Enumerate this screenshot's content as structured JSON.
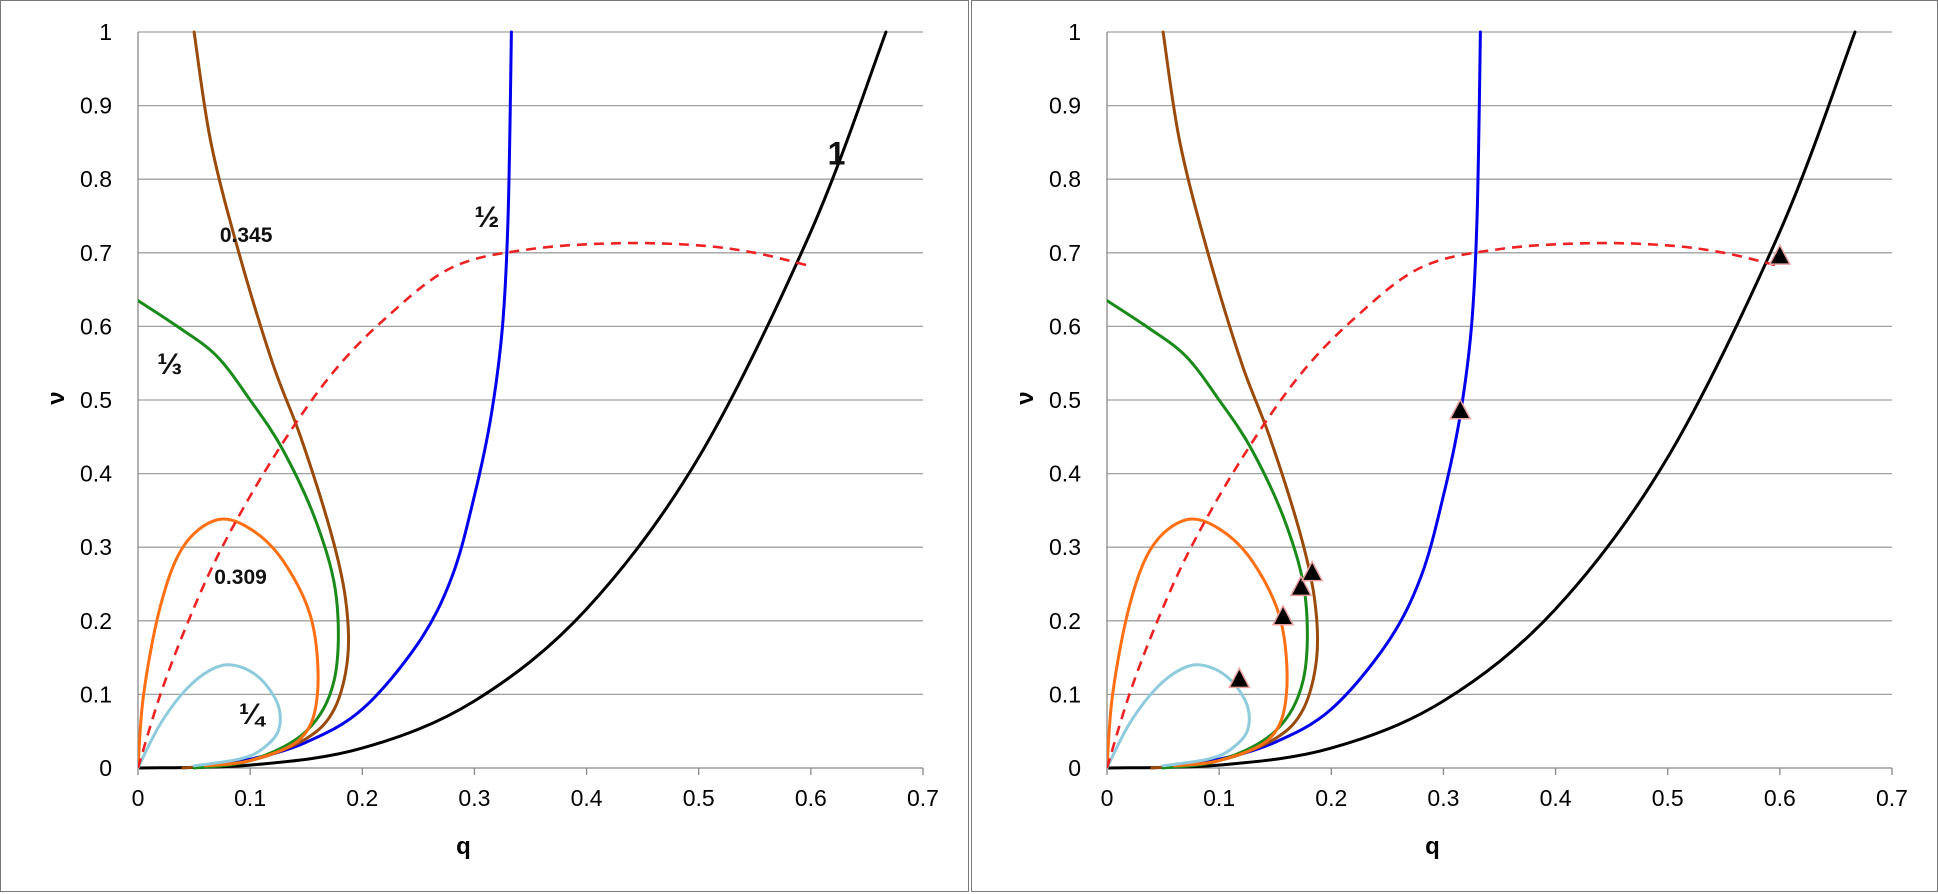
{
  "chart_data": [
    {
      "type": "line",
      "panel": "left",
      "xlabel": "q",
      "ylabel": "ν",
      "xlim": [
        0,
        0.7
      ],
      "ylim": [
        0,
        1
      ],
      "xticks": [
        "0",
        "0.1",
        "0.2",
        "0.3",
        "0.4",
        "0.5",
        "0.6",
        "0.7"
      ],
      "yticks": [
        "0",
        "0.1",
        "0.2",
        "0.3",
        "0.4",
        "0.5",
        "0.6",
        "0.7",
        "0.8",
        "0.9",
        "1"
      ],
      "grid": "horizontal",
      "series": [
        {
          "color": "#000000",
          "style": "solid",
          "label": "1",
          "points": [
            [
              0,
              0
            ],
            [
              0.1,
              0.004
            ],
            [
              0.2,
              0.027
            ],
            [
              0.3,
              0.091
            ],
            [
              0.4,
              0.216
            ],
            [
              0.5,
              0.422
            ],
            [
              0.6,
              0.729
            ],
            [
              0.667,
              1.0
            ]
          ]
        },
        {
          "color": "#0000ee",
          "style": "solid",
          "label": "½",
          "points": [
            [
              0.05,
              0.002
            ],
            [
              0.1,
              0.012
            ],
            [
              0.15,
              0.035
            ],
            [
              0.2,
              0.08
            ],
            [
              0.25,
              0.17
            ],
            [
              0.28,
              0.26
            ],
            [
              0.3,
              0.37
            ],
            [
              0.315,
              0.48
            ],
            [
              0.325,
              0.6
            ],
            [
              0.33,
              0.75
            ],
            [
              0.333,
              1.0
            ]
          ]
        },
        {
          "color": "#9a4a0a",
          "style": "solid",
          "label": "0.345",
          "points": [
            [
              0.04,
              0
            ],
            [
              0.1,
              0.01
            ],
            [
              0.15,
              0.04
            ],
            [
              0.175,
              0.08
            ],
            [
              0.187,
              0.15
            ],
            [
              0.185,
              0.23
            ],
            [
              0.172,
              0.32
            ],
            [
              0.145,
              0.45
            ],
            [
              0.12,
              0.55
            ],
            [
              0.09,
              0.7
            ],
            [
              0.065,
              0.85
            ],
            [
              0.05,
              1.0
            ]
          ]
        },
        {
          "color": "#1a8a1a",
          "style": "solid",
          "label": "⅓",
          "points": [
            [
              0.05,
              0
            ],
            [
              0.1,
              0.01
            ],
            [
              0.15,
              0.05
            ],
            [
              0.175,
              0.12
            ],
            [
              0.177,
              0.23
            ],
            [
              0.16,
              0.33
            ],
            [
              0.13,
              0.43
            ],
            [
              0.1,
              0.5
            ],
            [
              0.07,
              0.56
            ],
            [
              0.035,
              0.6
            ],
            [
              0,
              0.635
            ]
          ]
        },
        {
          "color": "#ff7014",
          "style": "solid",
          "label": "0.309",
          "points": [
            [
              0,
              0
            ],
            [
              0.005,
              0.1
            ],
            [
              0.02,
              0.22
            ],
            [
              0.04,
              0.3
            ],
            [
              0.07,
              0.337
            ],
            [
              0.1,
              0.325
            ],
            [
              0.13,
              0.28
            ],
            [
              0.155,
              0.2
            ],
            [
              0.16,
              0.1
            ],
            [
              0.145,
              0.04
            ],
            [
              0.1,
              0.01
            ],
            [
              0.06,
              0.003
            ]
          ]
        },
        {
          "color": "#8ecbdc",
          "style": "solid",
          "label": "¼",
          "points": [
            [
              0,
              0
            ],
            [
              0.02,
              0.06
            ],
            [
              0.045,
              0.11
            ],
            [
              0.07,
              0.137
            ],
            [
              0.09,
              0.138
            ],
            [
              0.11,
              0.12
            ],
            [
              0.125,
              0.085
            ],
            [
              0.125,
              0.05
            ],
            [
              0.11,
              0.025
            ],
            [
              0.09,
              0.012
            ],
            [
              0.05,
              0.003
            ]
          ]
        },
        {
          "color": "#ee2222",
          "style": "dashed",
          "label": "",
          "points": [
            [
              0,
              0
            ],
            [
              0.02,
              0.1
            ],
            [
              0.045,
              0.2
            ],
            [
              0.075,
              0.3
            ],
            [
              0.12,
              0.42
            ],
            [
              0.17,
              0.53
            ],
            [
              0.22,
              0.61
            ],
            [
              0.28,
              0.68
            ],
            [
              0.35,
              0.705
            ],
            [
              0.43,
              0.713
            ],
            [
              0.5,
              0.71
            ],
            [
              0.55,
              0.7
            ],
            [
              0.597,
              0.683
            ]
          ]
        }
      ],
      "annotations": [
        {
          "text": "1",
          "x": 0.615,
          "y": 0.82
        },
        {
          "text": "½",
          "x": 0.3,
          "y": 0.735
        },
        {
          "text": "0.345",
          "x": 0.073,
          "y": 0.715
        },
        {
          "text": "⅓",
          "x": 0.017,
          "y": 0.535
        },
        {
          "text": "0.309",
          "x": 0.068,
          "y": 0.25
        },
        {
          "text": "¼",
          "x": 0.09,
          "y": 0.06
        }
      ],
      "markers": []
    },
    {
      "type": "line",
      "panel": "right",
      "xlabel": "q",
      "ylabel": "ν",
      "xlim": [
        0,
        0.7
      ],
      "ylim": [
        0,
        1
      ],
      "xticks": [
        "0",
        "0.1",
        "0.2",
        "0.3",
        "0.4",
        "0.5",
        "0.6",
        "0.7"
      ],
      "yticks": [
        "0",
        "0.1",
        "0.2",
        "0.3",
        "0.4",
        "0.5",
        "0.6",
        "0.7",
        "0.8",
        "0.9",
        "1"
      ],
      "grid": "horizontal",
      "series": [
        {
          "color": "#000000",
          "style": "solid",
          "label": "",
          "points": [
            [
              0,
              0
            ],
            [
              0.1,
              0.004
            ],
            [
              0.2,
              0.027
            ],
            [
              0.3,
              0.091
            ],
            [
              0.4,
              0.216
            ],
            [
              0.5,
              0.422
            ],
            [
              0.6,
              0.729
            ],
            [
              0.667,
              1.0
            ]
          ]
        },
        {
          "color": "#0000ee",
          "style": "solid",
          "label": "",
          "points": [
            [
              0.05,
              0.002
            ],
            [
              0.1,
              0.012
            ],
            [
              0.15,
              0.035
            ],
            [
              0.2,
              0.08
            ],
            [
              0.25,
              0.17
            ],
            [
              0.28,
              0.26
            ],
            [
              0.3,
              0.37
            ],
            [
              0.315,
              0.48
            ],
            [
              0.325,
              0.6
            ],
            [
              0.33,
              0.75
            ],
            [
              0.333,
              1.0
            ]
          ]
        },
        {
          "color": "#9a4a0a",
          "style": "solid",
          "label": "",
          "points": [
            [
              0.04,
              0
            ],
            [
              0.1,
              0.01
            ],
            [
              0.15,
              0.04
            ],
            [
              0.175,
              0.08
            ],
            [
              0.187,
              0.15
            ],
            [
              0.185,
              0.23
            ],
            [
              0.172,
              0.32
            ],
            [
              0.145,
              0.45
            ],
            [
              0.12,
              0.55
            ],
            [
              0.09,
              0.7
            ],
            [
              0.065,
              0.85
            ],
            [
              0.05,
              1.0
            ]
          ]
        },
        {
          "color": "#1a8a1a",
          "style": "solid",
          "label": "",
          "points": [
            [
              0.05,
              0
            ],
            [
              0.1,
              0.01
            ],
            [
              0.15,
              0.05
            ],
            [
              0.175,
              0.12
            ],
            [
              0.177,
              0.23
            ],
            [
              0.16,
              0.33
            ],
            [
              0.13,
              0.43
            ],
            [
              0.1,
              0.5
            ],
            [
              0.07,
              0.56
            ],
            [
              0.035,
              0.6
            ],
            [
              0,
              0.635
            ]
          ]
        },
        {
          "color": "#ff7014",
          "style": "solid",
          "label": "",
          "points": [
            [
              0,
              0
            ],
            [
              0.005,
              0.1
            ],
            [
              0.02,
              0.22
            ],
            [
              0.04,
              0.3
            ],
            [
              0.07,
              0.337
            ],
            [
              0.1,
              0.325
            ],
            [
              0.13,
              0.28
            ],
            [
              0.155,
              0.2
            ],
            [
              0.16,
              0.1
            ],
            [
              0.145,
              0.04
            ],
            [
              0.1,
              0.01
            ],
            [
              0.06,
              0.003
            ]
          ]
        },
        {
          "color": "#8ecbdc",
          "style": "solid",
          "label": "",
          "points": [
            [
              0,
              0
            ],
            [
              0.02,
              0.06
            ],
            [
              0.045,
              0.11
            ],
            [
              0.07,
              0.137
            ],
            [
              0.09,
              0.138
            ],
            [
              0.11,
              0.12
            ],
            [
              0.125,
              0.085
            ],
            [
              0.125,
              0.05
            ],
            [
              0.11,
              0.025
            ],
            [
              0.09,
              0.012
            ],
            [
              0.05,
              0.003
            ]
          ]
        },
        {
          "color": "#ee2222",
          "style": "dashed",
          "label": "",
          "points": [
            [
              0,
              0
            ],
            [
              0.02,
              0.1
            ],
            [
              0.045,
              0.2
            ],
            [
              0.075,
              0.3
            ],
            [
              0.12,
              0.42
            ],
            [
              0.17,
              0.53
            ],
            [
              0.22,
              0.61
            ],
            [
              0.28,
              0.68
            ],
            [
              0.35,
              0.705
            ],
            [
              0.43,
              0.713
            ],
            [
              0.5,
              0.71
            ],
            [
              0.55,
              0.7
            ],
            [
              0.597,
              0.683
            ]
          ]
        }
      ],
      "annotations": [],
      "markers": [
        [
          0.118,
          0.115
        ],
        [
          0.157,
          0.2
        ],
        [
          0.173,
          0.24
        ],
        [
          0.183,
          0.26
        ],
        [
          0.315,
          0.48
        ],
        [
          0.6,
          0.69
        ]
      ]
    }
  ]
}
